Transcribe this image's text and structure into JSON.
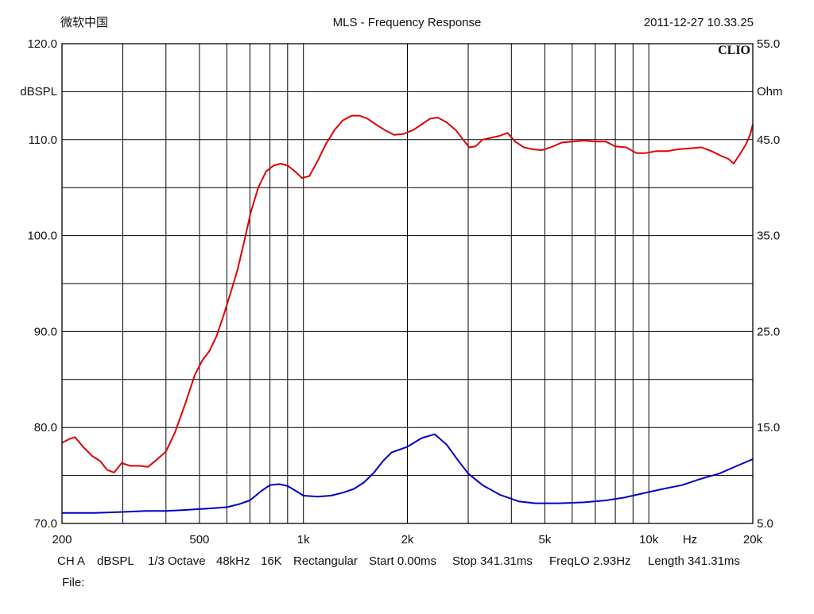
{
  "header": {
    "company": "微软中国",
    "title": "MLS - Frequency Response",
    "timestamp": "2011-12-27 10.33.25",
    "brand": "CLIO"
  },
  "footer": {
    "settings": [
      "CH A",
      "dBSPL",
      "1/3 Octave",
      "48kHz",
      "16K",
      "Rectangular",
      "Start 0.00ms",
      "Stop 341.31ms",
      "FreqLO 2.93Hz",
      "Length 341.31ms"
    ],
    "file_label": "File:"
  },
  "chart_data": {
    "type": "line",
    "title": "MLS - Frequency Response",
    "xlabel": "Hz",
    "ylabel": "dBSPL",
    "y2label": "Ohm",
    "x_scale": "log",
    "xlim": [
      200,
      20000
    ],
    "ylim": [
      70,
      120
    ],
    "y2lim": [
      5,
      55
    ],
    "grid": true,
    "x_tick_labels": [
      {
        "value": 200,
        "label": "200"
      },
      {
        "value": 500,
        "label": "500"
      },
      {
        "value": 1000,
        "label": "1k"
      },
      {
        "value": 2000,
        "label": "2k"
      },
      {
        "value": 5000,
        "label": "5k"
      },
      {
        "value": 10000,
        "label": "10k"
      },
      {
        "value": 20000,
        "label": "20k"
      }
    ],
    "x_gridlines": [
      300,
      400,
      500,
      600,
      700,
      800,
      900,
      1000,
      2000,
      3000,
      4000,
      5000,
      6000,
      7000,
      8000,
      9000,
      10000
    ],
    "y_tick_labels": [
      {
        "value": 70,
        "label": "70.0"
      },
      {
        "value": 80,
        "label": "80.0"
      },
      {
        "value": 90,
        "label": "90.0"
      },
      {
        "value": 100,
        "label": "100.0"
      },
      {
        "value": 110,
        "label": "110.0"
      },
      {
        "value": 120,
        "label": "120.0"
      }
    ],
    "y_gridlines": [
      75,
      80,
      85,
      90,
      95,
      100,
      105,
      110,
      115
    ],
    "y2_tick_labels": [
      {
        "value": 5,
        "label": "5.0"
      },
      {
        "value": 15,
        "label": "15.0"
      },
      {
        "value": 25,
        "label": "25.0"
      },
      {
        "value": 35,
        "label": "35.0"
      },
      {
        "value": 45,
        "label": "45.0"
      },
      {
        "value": 55,
        "label": "55.0"
      }
    ],
    "series": [
      {
        "axis": "left",
        "color": "#e00000",
        "points": [
          [
            200,
            78.4
          ],
          [
            210,
            78.8
          ],
          [
            218,
            79.0
          ],
          [
            230,
            78.0
          ],
          [
            245,
            77.0
          ],
          [
            258,
            76.5
          ],
          [
            270,
            75.6
          ],
          [
            283,
            75.3
          ],
          [
            298,
            76.3
          ],
          [
            315,
            76.0
          ],
          [
            335,
            76.0
          ],
          [
            355,
            75.9
          ],
          [
            375,
            76.6
          ],
          [
            400,
            77.5
          ],
          [
            425,
            79.5
          ],
          [
            455,
            82.5
          ],
          [
            485,
            85.5
          ],
          [
            510,
            87.0
          ],
          [
            535,
            88.0
          ],
          [
            560,
            89.5
          ],
          [
            585,
            91.5
          ],
          [
            615,
            94.0
          ],
          [
            645,
            96.5
          ],
          [
            675,
            99.5
          ],
          [
            705,
            102.5
          ],
          [
            740,
            105.0
          ],
          [
            780,
            106.7
          ],
          [
            820,
            107.3
          ],
          [
            860,
            107.5
          ],
          [
            900,
            107.3
          ],
          [
            945,
            106.7
          ],
          [
            990,
            106.0
          ],
          [
            1040,
            106.2
          ],
          [
            1100,
            107.8
          ],
          [
            1160,
            109.5
          ],
          [
            1230,
            111.0
          ],
          [
            1300,
            112.0
          ],
          [
            1380,
            112.5
          ],
          [
            1450,
            112.5
          ],
          [
            1530,
            112.2
          ],
          [
            1620,
            111.6
          ],
          [
            1720,
            111.0
          ],
          [
            1830,
            110.5
          ],
          [
            1950,
            110.6
          ],
          [
            2080,
            111.0
          ],
          [
            2200,
            111.6
          ],
          [
            2330,
            112.2
          ],
          [
            2450,
            112.3
          ],
          [
            2600,
            111.8
          ],
          [
            2760,
            111.0
          ],
          [
            2900,
            110.0
          ],
          [
            3020,
            109.2
          ],
          [
            3150,
            109.3
          ],
          [
            3300,
            110.0
          ],
          [
            3500,
            110.2
          ],
          [
            3700,
            110.4
          ],
          [
            3900,
            110.7
          ],
          [
            4100,
            109.8
          ],
          [
            4350,
            109.2
          ],
          [
            4600,
            109.0
          ],
          [
            4900,
            108.9
          ],
          [
            5200,
            109.2
          ],
          [
            5600,
            109.7
          ],
          [
            6000,
            109.8
          ],
          [
            6500,
            109.9
          ],
          [
            7000,
            109.8
          ],
          [
            7500,
            109.8
          ],
          [
            8000,
            109.3
          ],
          [
            8600,
            109.2
          ],
          [
            9200,
            108.6
          ],
          [
            9800,
            108.6
          ],
          [
            10500,
            108.8
          ],
          [
            11300,
            108.8
          ],
          [
            12200,
            109.0
          ],
          [
            13200,
            109.1
          ],
          [
            14200,
            109.2
          ],
          [
            15200,
            108.8
          ],
          [
            16200,
            108.3
          ],
          [
            17000,
            108.0
          ],
          [
            17600,
            107.5
          ],
          [
            18300,
            108.4
          ],
          [
            19100,
            109.5
          ],
          [
            19700,
            110.6
          ],
          [
            20000,
            111.6
          ]
        ]
      },
      {
        "axis": "right",
        "color": "#0000c8",
        "points": [
          [
            200,
            6.1
          ],
          [
            250,
            6.1
          ],
          [
            300,
            6.2
          ],
          [
            350,
            6.3
          ],
          [
            400,
            6.3
          ],
          [
            450,
            6.4
          ],
          [
            500,
            6.5
          ],
          [
            550,
            6.6
          ],
          [
            600,
            6.7
          ],
          [
            650,
            7.0
          ],
          [
            700,
            7.4
          ],
          [
            750,
            8.3
          ],
          [
            800,
            9.0
          ],
          [
            850,
            9.1
          ],
          [
            900,
            8.9
          ],
          [
            950,
            8.4
          ],
          [
            1000,
            7.9
          ],
          [
            1100,
            7.8
          ],
          [
            1200,
            7.9
          ],
          [
            1300,
            8.2
          ],
          [
            1400,
            8.6
          ],
          [
            1500,
            9.3
          ],
          [
            1600,
            10.3
          ],
          [
            1700,
            11.5
          ],
          [
            1800,
            12.4
          ],
          [
            1900,
            12.7
          ],
          [
            2000,
            13.0
          ],
          [
            2200,
            13.9
          ],
          [
            2400,
            14.3
          ],
          [
            2600,
            13.2
          ],
          [
            2800,
            11.6
          ],
          [
            3000,
            10.2
          ],
          [
            3300,
            9.0
          ],
          [
            3700,
            8.0
          ],
          [
            4200,
            7.3
          ],
          [
            4700,
            7.1
          ],
          [
            5500,
            7.1
          ],
          [
            6500,
            7.2
          ],
          [
            7500,
            7.4
          ],
          [
            8500,
            7.7
          ],
          [
            9500,
            8.1
          ],
          [
            11000,
            8.6
          ],
          [
            12500,
            9.0
          ],
          [
            14000,
            9.6
          ],
          [
            16000,
            10.2
          ],
          [
            18000,
            11.0
          ],
          [
            20000,
            11.7
          ]
        ]
      }
    ]
  }
}
